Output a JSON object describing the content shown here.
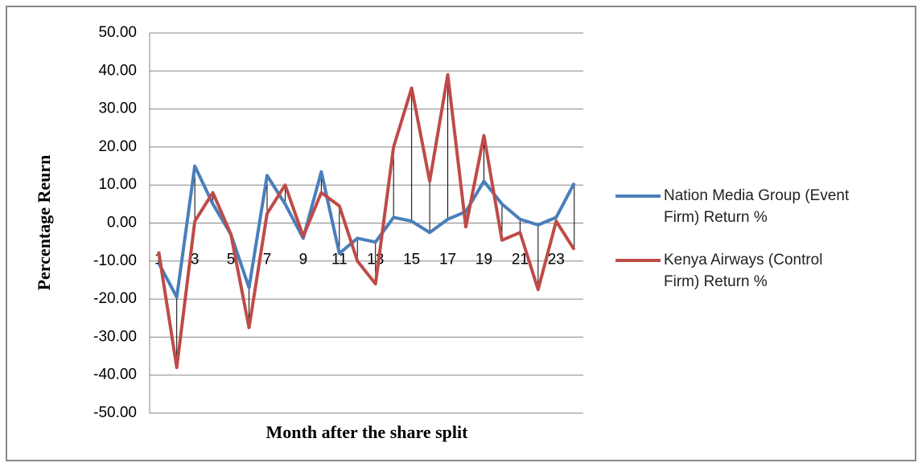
{
  "chart_data": {
    "type": "line",
    "y_label": "Percentage Reurn",
    "x_label": "Month after the share split",
    "categories": [
      "1",
      null,
      "3",
      null,
      "5",
      null,
      "7",
      null,
      "9",
      null,
      "11",
      null,
      "13",
      null,
      "15",
      null,
      "17",
      null,
      "19",
      null,
      "21",
      null,
      "23",
      null
    ],
    "series": [
      {
        "name": "Nation Media Group (Event Firm) Return %",
        "color": "#4a7ebb",
        "values": [
          -10.5,
          -19.5,
          15,
          5,
          -3,
          -17,
          12.5,
          5,
          -4,
          13.5,
          -8,
          -4,
          -5,
          1.5,
          0.5,
          -2.5,
          1,
          3,
          11,
          5,
          1,
          -0.5,
          1.5,
          10.5
        ]
      },
      {
        "name": "Kenya Airways (Control Firm) Return %",
        "color": "#be4b48",
        "values": [
          -7.5,
          -38,
          0.5,
          8,
          -3,
          -27.5,
          2.5,
          10,
          -3.5,
          8,
          4.5,
          -10,
          -16,
          20,
          35.5,
          11,
          39,
          -1,
          23,
          -4.5,
          -2.5,
          -17.5,
          0.5,
          -7
        ]
      }
    ],
    "ylim": [
      -50,
      50
    ],
    "yticks": [
      {
        "value": -50,
        "label": "-50.00"
      },
      {
        "value": -40,
        "label": "-40.00"
      },
      {
        "value": -30,
        "label": "-30.00"
      },
      {
        "value": -20,
        "label": "-20.00"
      },
      {
        "value": -10,
        "label": "-10.00"
      },
      {
        "value": 0,
        "label": "0.00"
      },
      {
        "value": 10,
        "label": "10.00"
      },
      {
        "value": 20,
        "label": "20.00"
      },
      {
        "value": 30,
        "label": "30.00"
      },
      {
        "value": 40,
        "label": "40.00"
      },
      {
        "value": 50,
        "label": "50.00"
      }
    ],
    "grid": true,
    "high_low_lines": true,
    "legend": "right"
  }
}
